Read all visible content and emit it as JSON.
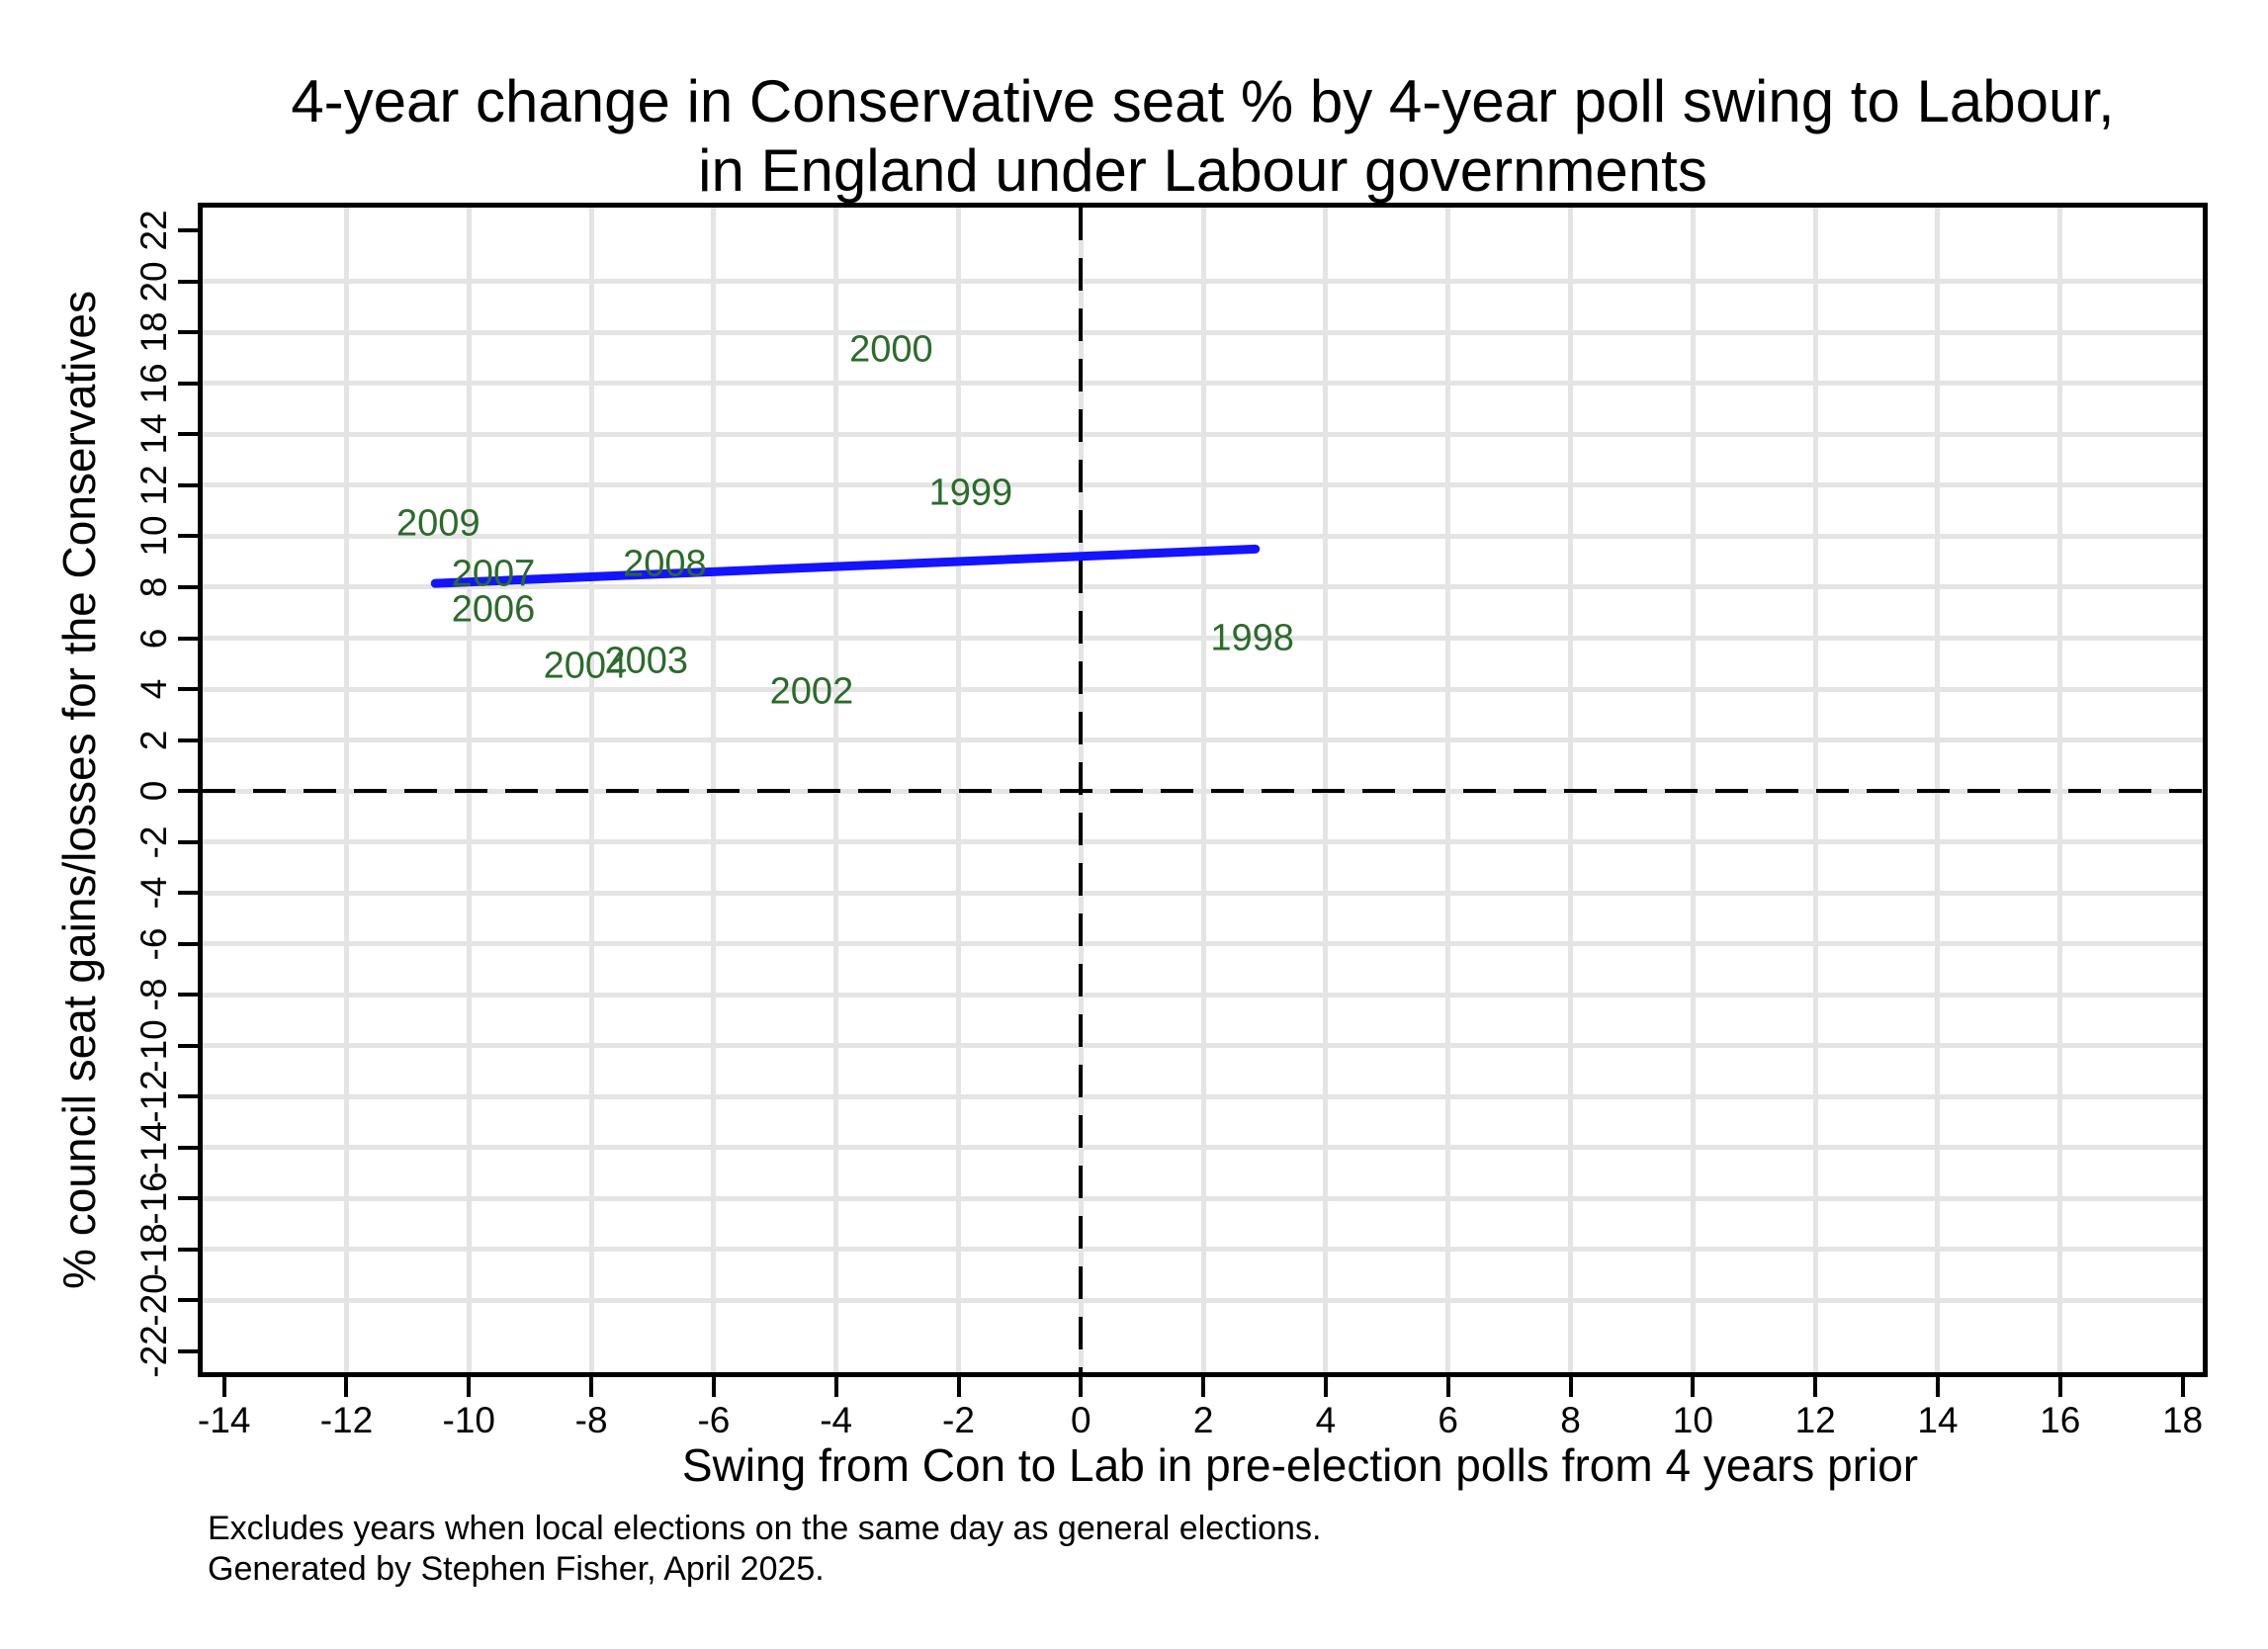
{
  "chart_data": {
    "type": "scatter",
    "title_lines": [
      "4-year change in Conservative seat % by 4-year poll swing to Labour,",
      "in England under Labour governments"
    ],
    "xlabel": "Swing from Con to Lab in pre-election polls from 4 years prior",
    "ylabel": "% council seat gains/losses for the Conservatives",
    "points": [
      {
        "label": "1998",
        "x": 2.8,
        "y": 6.0
      },
      {
        "label": "1999",
        "x": -1.8,
        "y": 11.7
      },
      {
        "label": "2000",
        "x": -3.1,
        "y": 17.3
      },
      {
        "label": "2002",
        "x": -4.4,
        "y": 3.9
      },
      {
        "label": "2003",
        "x": -7.1,
        "y": 5.1
      },
      {
        "label": "2004",
        "x": -8.1,
        "y": 4.9
      },
      {
        "label": "2006",
        "x": -9.6,
        "y": 7.1
      },
      {
        "label": "2007",
        "x": -9.6,
        "y": 8.5
      },
      {
        "label": "2008",
        "x": -6.8,
        "y": 8.9
      },
      {
        "label": "2009",
        "x": -10.5,
        "y": 10.5
      }
    ],
    "trendline": {
      "x1": -10.55,
      "y1": 8.15,
      "x2": 2.85,
      "y2": 9.5
    },
    "x_ticks": [
      -14,
      -12,
      -10,
      -8,
      -6,
      -4,
      -2,
      0,
      2,
      4,
      6,
      8,
      10,
      12,
      14,
      16,
      18
    ],
    "y_ticks": [
      -22,
      -20,
      -18,
      -16,
      -14,
      -12,
      -10,
      -8,
      -6,
      -4,
      -2,
      0,
      2,
      4,
      6,
      8,
      10,
      12,
      14,
      16,
      18,
      20,
      22
    ],
    "x_gridlines": [
      -12,
      -10,
      -8,
      -6,
      -4,
      -2,
      0,
      2,
      4,
      6,
      8,
      10,
      12,
      14,
      16
    ],
    "y_gridlines": [
      -20,
      -18,
      -16,
      -14,
      -12,
      -10,
      -8,
      -6,
      -4,
      -2,
      0,
      2,
      4,
      6,
      8,
      10,
      12,
      14,
      16,
      18,
      20
    ],
    "xlim": [
      -14.35,
      18.33
    ],
    "ylim": [
      -22.83,
      22.91
    ],
    "reference_lines": {
      "x": 0,
      "y": 0
    },
    "grid": true,
    "legend": "none",
    "colors": {
      "point_label": "#2b6b2b",
      "trendline": "#1414ff",
      "gridline": "#e4e4e4",
      "axis": "#000000"
    }
  },
  "notes": [
    "Excludes years when local elections on the same day as general elections.",
    "Generated by Stephen Fisher, April 2025."
  ]
}
